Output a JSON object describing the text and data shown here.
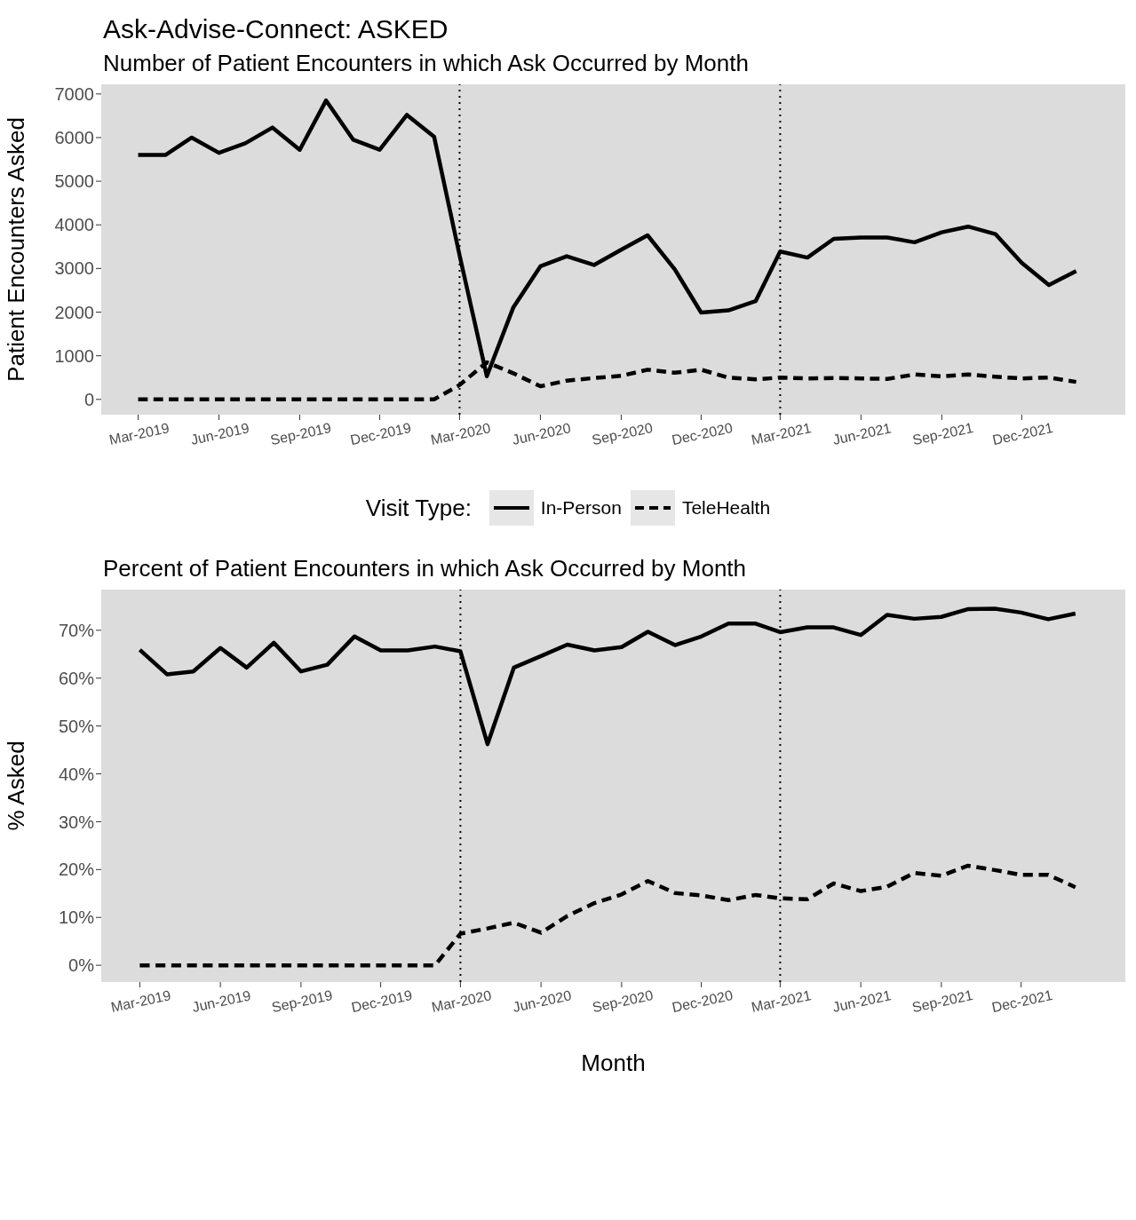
{
  "chart_data": [
    {
      "type": "line",
      "title": "Ask-Advise-Connect: ASKED",
      "subtitle": "Number of Patient Encounters in which Ask Occurred by Month",
      "ylabel": "Patient Encounters Asked",
      "legend_title": "Visit Type:",
      "legend": "bottom",
      "grid": false,
      "marker": "none",
      "x": [
        "2019-03",
        "2019-04",
        "2019-05",
        "2019-06",
        "2019-07",
        "2019-08",
        "2019-09",
        "2019-10",
        "2019-11",
        "2019-12",
        "2020-01",
        "2020-02",
        "2020-03",
        "2020-04",
        "2020-05",
        "2020-06",
        "2020-07",
        "2020-08",
        "2020-09",
        "2020-10",
        "2020-11",
        "2020-12",
        "2021-01",
        "2021-02",
        "2021-03",
        "2021-04",
        "2021-05",
        "2021-06",
        "2021-07",
        "2021-08",
        "2021-09",
        "2021-10",
        "2021-11",
        "2021-12",
        "2022-01",
        "2022-02"
      ],
      "series": [
        {
          "name": "In-Person",
          "color": "#000000",
          "line_style": "solid",
          "values": [
            5600,
            5600,
            6000,
            5650,
            5870,
            6230,
            5720,
            6850,
            5950,
            5720,
            6520,
            6020,
            3300,
            530,
            2100,
            3050,
            3280,
            3080,
            3430,
            3760,
            2980,
            1990,
            2040,
            2250,
            3390,
            3250,
            3680,
            3710,
            3710,
            3600,
            3830,
            3960,
            3790,
            3130,
            2620,
            2940
          ]
        },
        {
          "name": "TeleHealth",
          "color": "#000000",
          "line_style": "dashed",
          "values": [
            0,
            0,
            0,
            0,
            0,
            0,
            0,
            0,
            0,
            0,
            0,
            0,
            330,
            850,
            600,
            300,
            430,
            490,
            540,
            680,
            610,
            680,
            500,
            460,
            500,
            480,
            490,
            480,
            470,
            570,
            530,
            570,
            520,
            480,
            500,
            400
          ]
        }
      ],
      "xlim": [
        "2019-01-18",
        "2022-03-29"
      ],
      "ylim": [
        -350,
        7220
      ],
      "xticks": [
        {
          "value": "2019-03",
          "label": "Mar-2019"
        },
        {
          "value": "2019-06",
          "label": "Jun-2019"
        },
        {
          "value": "2019-09",
          "label": "Sep-2019"
        },
        {
          "value": "2019-12",
          "label": "Dec-2019"
        },
        {
          "value": "2020-03",
          "label": "Mar-2020"
        },
        {
          "value": "2020-06",
          "label": "Jun-2020"
        },
        {
          "value": "2020-09",
          "label": "Sep-2020"
        },
        {
          "value": "2020-12",
          "label": "Dec-2020"
        },
        {
          "value": "2021-03",
          "label": "Mar-2021"
        },
        {
          "value": "2021-06",
          "label": "Jun-2021"
        },
        {
          "value": "2021-09",
          "label": "Sep-2021"
        },
        {
          "value": "2021-12",
          "label": "Dec-2021"
        }
      ],
      "yticks": [
        0,
        1000,
        2000,
        3000,
        4000,
        5000,
        6000,
        7000
      ],
      "ref_lines": [
        {
          "axis": "x",
          "value": "2020-03",
          "color": "#000000",
          "line_style": "dotted"
        },
        {
          "axis": "x",
          "value": "2021-03",
          "color": "#000000",
          "line_style": "dotted"
        }
      ]
    },
    {
      "type": "line",
      "title": "Percent of Patient Encounters in which Ask Occurred by Month",
      "xlabel": "Month",
      "ylabel": "% Asked",
      "legend": false,
      "grid": false,
      "marker": "none",
      "x": [
        "2019-03",
        "2019-04",
        "2019-05",
        "2019-06",
        "2019-07",
        "2019-08",
        "2019-09",
        "2019-10",
        "2019-11",
        "2019-12",
        "2020-01",
        "2020-02",
        "2020-03",
        "2020-04",
        "2020-05",
        "2020-06",
        "2020-07",
        "2020-08",
        "2020-09",
        "2020-10",
        "2020-11",
        "2020-12",
        "2021-01",
        "2021-02",
        "2021-03",
        "2021-04",
        "2021-05",
        "2021-06",
        "2021-07",
        "2021-08",
        "2021-09",
        "2021-10",
        "2021-11",
        "2021-12",
        "2022-01",
        "2022-02"
      ],
      "series": [
        {
          "color": "#000000",
          "line_style": "solid",
          "values": [
            65.9,
            60.8,
            61.4,
            66.3,
            62.2,
            67.4,
            61.4,
            62.8,
            68.7,
            65.8,
            65.8,
            66.6,
            65.6,
            46.2,
            62.2,
            64.6,
            67.0,
            65.8,
            66.5,
            69.7,
            66.9,
            68.7,
            71.4,
            71.4,
            69.6,
            70.6,
            70.6,
            69.0,
            73.2,
            72.4,
            72.8,
            74.4,
            74.5,
            73.7,
            72.3,
            73.5
          ]
        },
        {
          "color": "#000000",
          "line_style": "dashed",
          "values": [
            0,
            0,
            0,
            0,
            0,
            0,
            0,
            0,
            0,
            0,
            0,
            0,
            6.6,
            7.7,
            8.9,
            6.8,
            10.3,
            13.0,
            14.8,
            17.6,
            15.1,
            14.6,
            13.6,
            14.7,
            14.0,
            13.8,
            17.1,
            15.5,
            16.4,
            19.3,
            18.7,
            20.8,
            19.9,
            18.9,
            18.9,
            16.3
          ]
        }
      ],
      "xlim": [
        "2019-01-16",
        "2022-03-30"
      ],
      "ylim": [
        -3.5,
        78.5
      ],
      "xticks": [
        {
          "value": "2019-03",
          "label": "Mar-2019"
        },
        {
          "value": "2019-06",
          "label": "Jun-2019"
        },
        {
          "value": "2019-09",
          "label": "Sep-2019"
        },
        {
          "value": "2019-12",
          "label": "Dec-2019"
        },
        {
          "value": "2020-03",
          "label": "Mar-2020"
        },
        {
          "value": "2020-06",
          "label": "Jun-2020"
        },
        {
          "value": "2020-09",
          "label": "Sep-2020"
        },
        {
          "value": "2020-12",
          "label": "Dec-2020"
        },
        {
          "value": "2021-03",
          "label": "Mar-2021"
        },
        {
          "value": "2021-06",
          "label": "Jun-2021"
        },
        {
          "value": "2021-09",
          "label": "Sep-2021"
        },
        {
          "value": "2021-12",
          "label": "Dec-2021"
        }
      ],
      "yticks": [
        {
          "value": 0,
          "label": "0%"
        },
        {
          "value": 10,
          "label": "10%"
        },
        {
          "value": 20,
          "label": "20%"
        },
        {
          "value": 30,
          "label": "30%"
        },
        {
          "value": 40,
          "label": "40%"
        },
        {
          "value": 50,
          "label": "50%"
        },
        {
          "value": 60,
          "label": "60%"
        },
        {
          "value": 70,
          "label": "70%"
        }
      ],
      "ref_lines": [
        {
          "axis": "x",
          "value": "2020-03",
          "color": "#000000",
          "line_style": "dotted"
        },
        {
          "axis": "x",
          "value": "2021-03",
          "color": "#000000",
          "line_style": "dotted"
        }
      ]
    }
  ]
}
